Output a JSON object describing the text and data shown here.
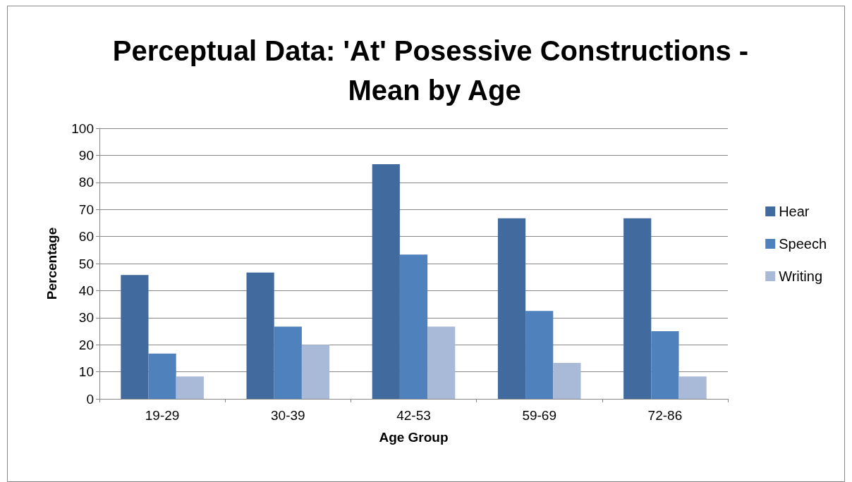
{
  "chart_data": {
    "type": "bar",
    "title": "Perceptual Data: 'At' Posessive Constructions - Mean by Age",
    "xlabel": "Age Group",
    "ylabel": "Percentage",
    "categories": [
      "19-29",
      "30-39",
      "42-53",
      "59-69",
      "72-86"
    ],
    "series": [
      {
        "name": "Hear",
        "color": "#416a9f",
        "values": [
          45.8,
          46.7,
          86.7,
          66.7,
          66.7
        ]
      },
      {
        "name": "Speech",
        "color": "#4f81bd",
        "values": [
          16.7,
          26.7,
          53.3,
          32.5,
          25
        ]
      },
      {
        "name": "Writing",
        "color": "#a9bad8",
        "values": [
          8.3,
          20,
          26.7,
          13.3,
          8.3
        ]
      }
    ],
    "ylim": [
      0,
      100
    ],
    "yticks": [
      0,
      10,
      20,
      30,
      40,
      50,
      60,
      70,
      80,
      90,
      100
    ],
    "grid": "y",
    "legend": "right"
  }
}
